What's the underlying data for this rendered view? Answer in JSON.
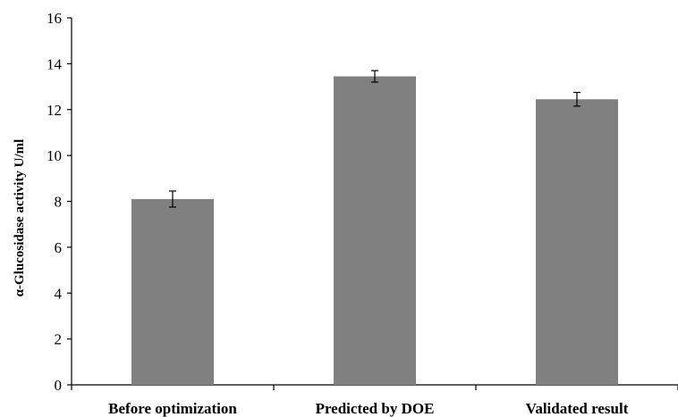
{
  "chart_data": {
    "type": "bar",
    "categories": [
      "Before optimization",
      "Predicted by DOE",
      "Validated result"
    ],
    "values": [
      8.1,
      13.45,
      12.45
    ],
    "errors": [
      0.35,
      0.25,
      0.3
    ],
    "title": "",
    "xlabel": "",
    "ylabel": "α-Glucosidase activity U/ml",
    "ylim": [
      0,
      16
    ],
    "yticks": [
      0,
      2,
      4,
      6,
      8,
      10,
      12,
      14,
      16
    ],
    "grid": false,
    "bar_color": "#808080"
  }
}
